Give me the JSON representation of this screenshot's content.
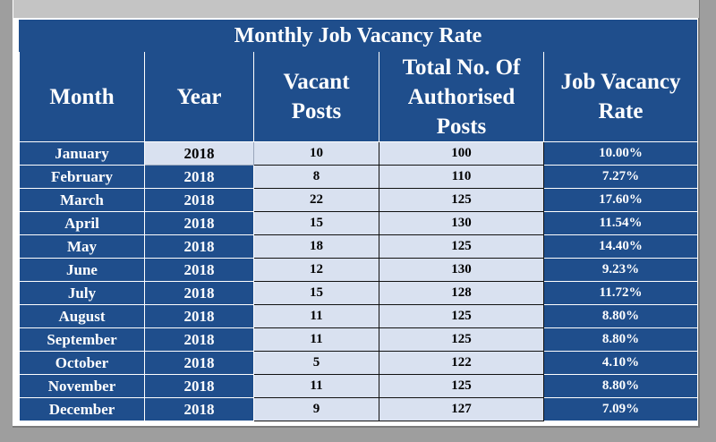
{
  "table": {
    "title": "Monthly Job Vacancy Rate",
    "headers": {
      "month": "Month",
      "year": "Year",
      "vacant_line1": "Vacant",
      "vacant_line2": "Posts",
      "total_line1": "Total No. Of",
      "total_line2": "Authorised",
      "total_line3": "Posts",
      "rate_line1": "Job Vacancy",
      "rate_line2": "Rate"
    },
    "rows": [
      {
        "month": "January",
        "year": "2018",
        "vacant": "10",
        "total": "100",
        "rate": "10.00%"
      },
      {
        "month": "February",
        "year": "2018",
        "vacant": "8",
        "total": "110",
        "rate": "7.27%"
      },
      {
        "month": "March",
        "year": "2018",
        "vacant": "22",
        "total": "125",
        "rate": "17.60%"
      },
      {
        "month": "April",
        "year": "2018",
        "vacant": "15",
        "total": "130",
        "rate": "11.54%"
      },
      {
        "month": "May",
        "year": "2018",
        "vacant": "18",
        "total": "125",
        "rate": "14.40%"
      },
      {
        "month": "June",
        "year": "2018",
        "vacant": "12",
        "total": "130",
        "rate": "9.23%"
      },
      {
        "month": "July",
        "year": "2018",
        "vacant": "15",
        "total": "128",
        "rate": "11.72%"
      },
      {
        "month": "August",
        "year": "2018",
        "vacant": "11",
        "total": "125",
        "rate": "8.80%"
      },
      {
        "month": "September",
        "year": "2018",
        "vacant": "11",
        "total": "125",
        "rate": "8.80%"
      },
      {
        "month": "October",
        "year": "2018",
        "vacant": "5",
        "total": "122",
        "rate": "4.10%"
      },
      {
        "month": "November",
        "year": "2018",
        "vacant": "11",
        "total": "125",
        "rate": "8.80%"
      },
      {
        "month": "December",
        "year": "2018",
        "vacant": "9",
        "total": "127",
        "rate": "7.09%"
      }
    ]
  },
  "colors": {
    "header_blue": "#1f4e8c",
    "light_cell": "#d9e1f0",
    "window_gray": "#9e9e9e"
  }
}
